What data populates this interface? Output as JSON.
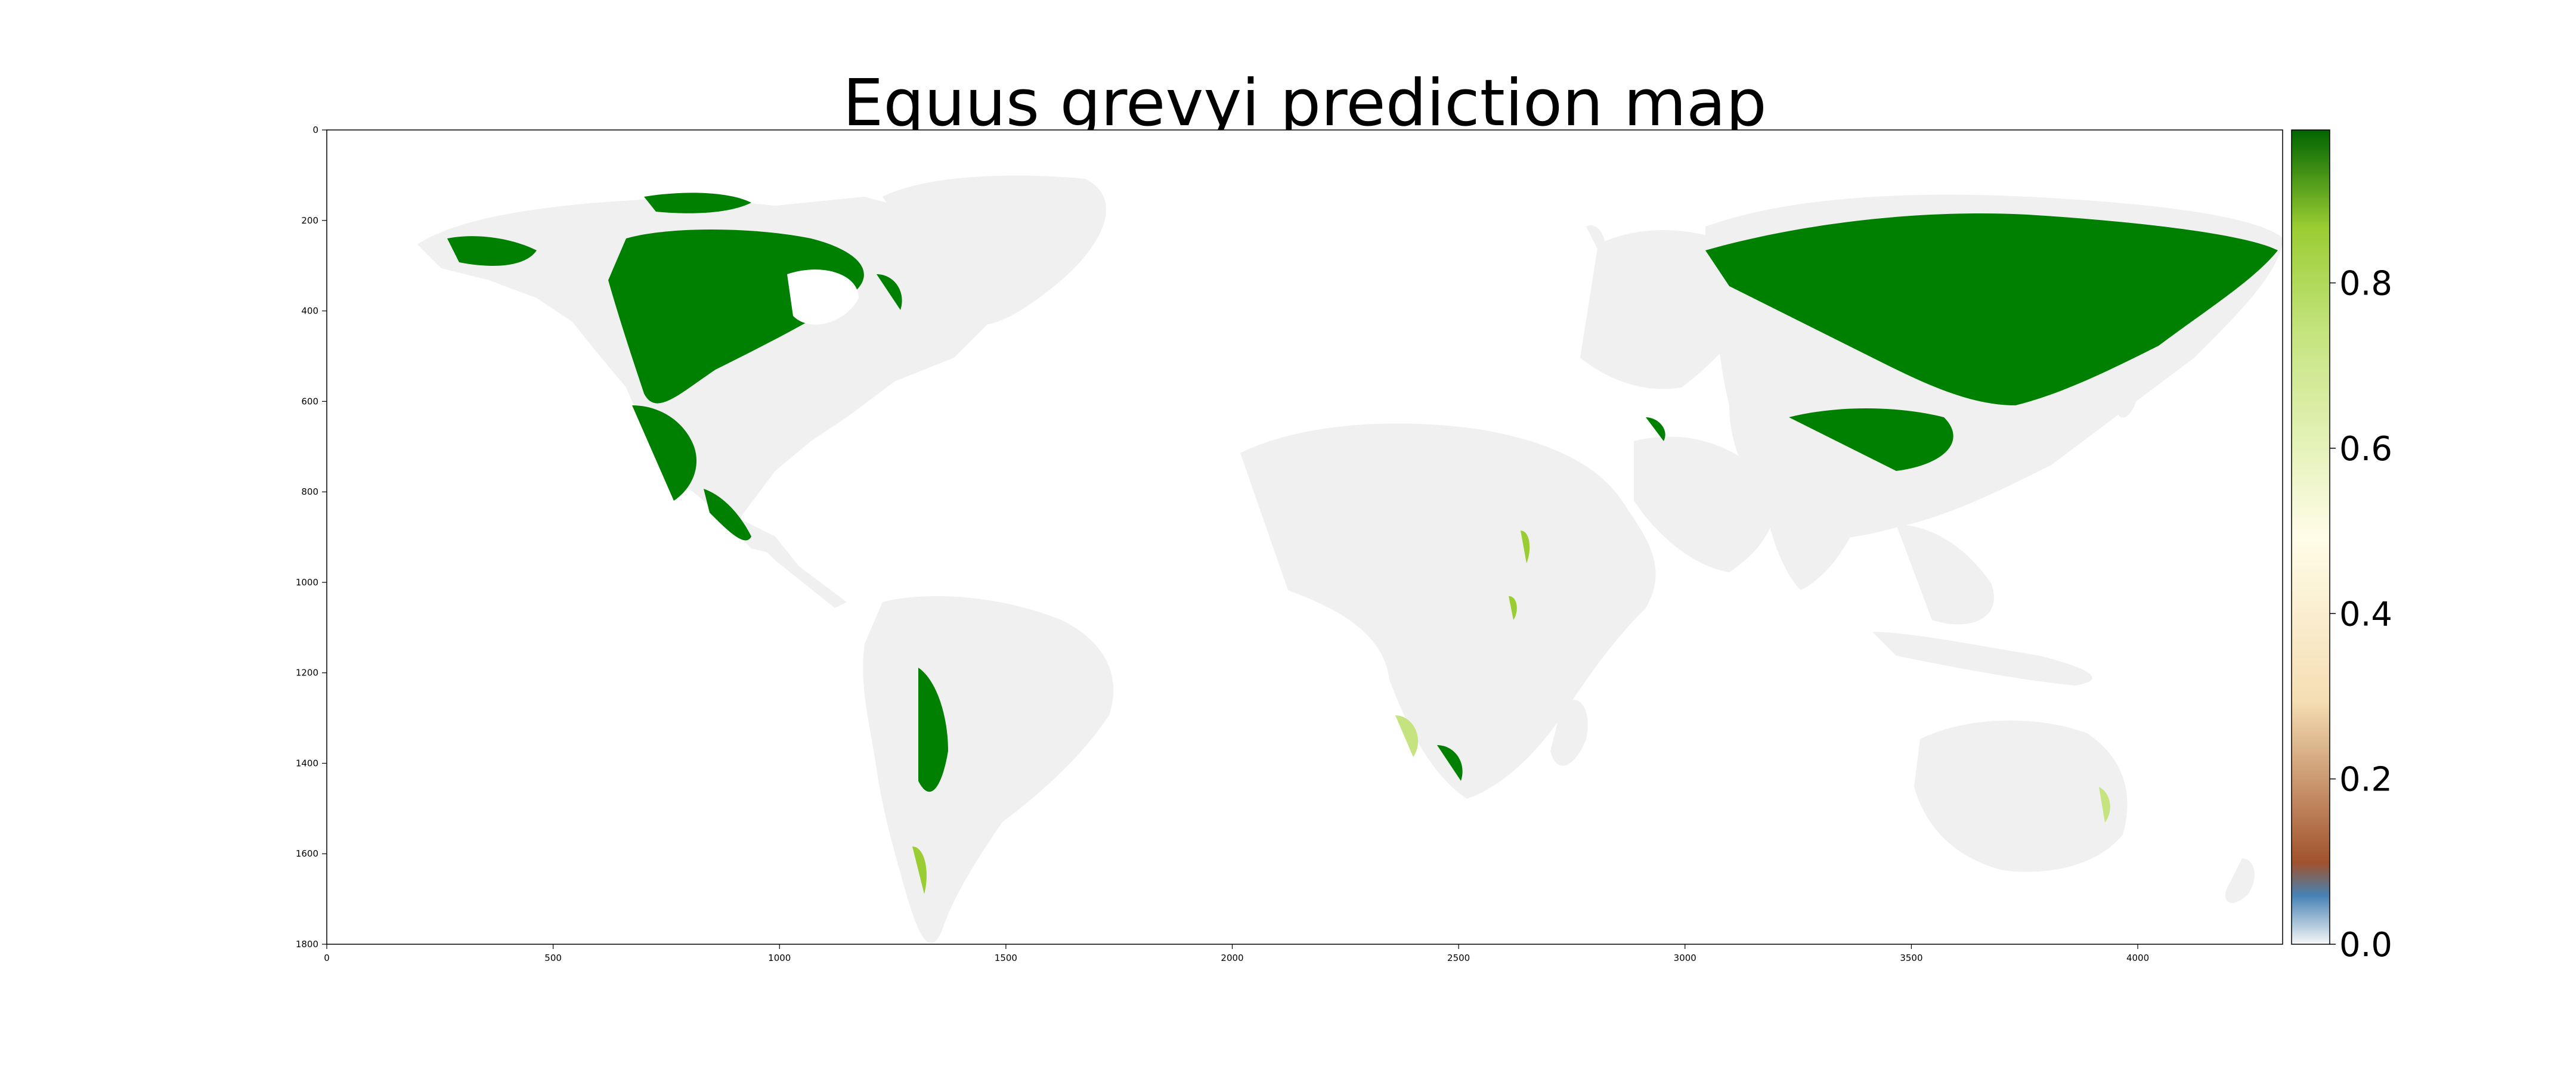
{
  "title": "Equus grevyi prediction map",
  "map": {
    "x_ticks": [
      "0",
      "500",
      "1000",
      "1500",
      "2000",
      "2500",
      "3000",
      "3500",
      "4000"
    ],
    "x_tick_values": [
      0,
      500,
      1000,
      1500,
      2000,
      2500,
      3000,
      3500,
      4000
    ],
    "y_ticks": [
      "0",
      "200",
      "400",
      "600",
      "800",
      "1000",
      "1200",
      "1400",
      "1600",
      "1800"
    ],
    "y_tick_values": [
      0,
      200,
      400,
      600,
      800,
      1000,
      1200,
      1400,
      1600,
      1800
    ],
    "x_range": [
      0,
      4320
    ],
    "y_range": [
      0,
      1800
    ],
    "land_color": "#f0f0f0",
    "high_color": "#008000"
  },
  "colorbar": {
    "ticks": [
      "0.0",
      "0.2",
      "0.4",
      "0.6",
      "0.8"
    ],
    "tick_values": [
      0.0,
      0.2,
      0.4,
      0.6,
      0.8
    ],
    "range": [
      0.0,
      0.985
    ],
    "colors": [
      "#f7f7f7",
      "#4682b4",
      "#a0522d",
      "#f5deb3",
      "#fffde8",
      "#9acd32",
      "#006400"
    ]
  }
}
